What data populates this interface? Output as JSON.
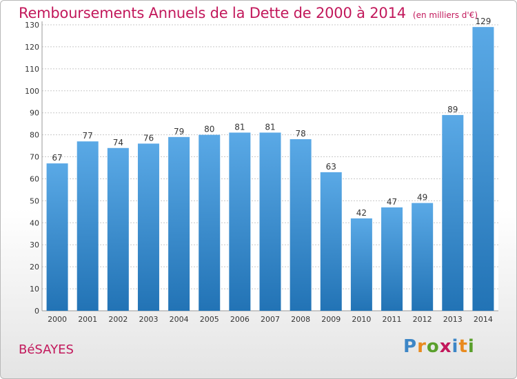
{
  "chart_data": {
    "type": "bar",
    "title": "Remboursements Annuels de la Dette de 2000 à 2014",
    "subtitle": "(en milliers d'€)",
    "categories": [
      "2000",
      "2001",
      "2002",
      "2003",
      "2004",
      "2005",
      "2006",
      "2007",
      "2008",
      "2009",
      "2010",
      "2011",
      "2012",
      "2013",
      "2014"
    ],
    "values": [
      67,
      77,
      74,
      76,
      79,
      80,
      81,
      81,
      78,
      63,
      42,
      47,
      49,
      89,
      129
    ],
    "yticks": [
      0,
      10,
      20,
      30,
      40,
      50,
      60,
      70,
      80,
      90,
      100,
      110,
      120,
      130
    ],
    "ylim": [
      0,
      130
    ],
    "xlabel": "",
    "ylabel": "",
    "grid": true
  },
  "commune": "BéSAYES",
  "logo": {
    "letters": [
      "P",
      "r",
      "o",
      "x",
      "i",
      "t",
      "i"
    ],
    "colors": [
      "#3d86c6",
      "#e98a1e",
      "#5aa02c",
      "#c2185b",
      "#3d86c6",
      "#e98a1e",
      "#5aa02c"
    ]
  },
  "colors": {
    "title": "#c2185b",
    "bar_top": "#5aa9e6",
    "bar_bottom": "#2273b5",
    "grid": "#c8c8c8"
  }
}
